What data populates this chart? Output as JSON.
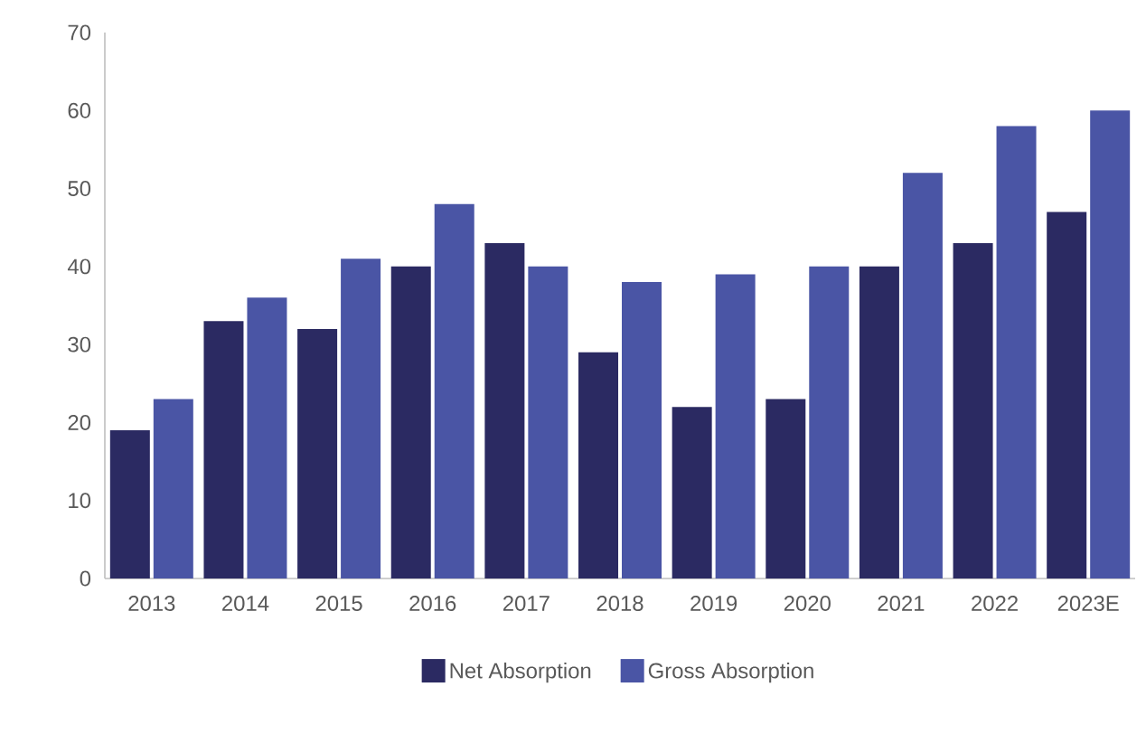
{
  "chart_data": {
    "type": "bar",
    "categories": [
      "2013",
      "2014",
      "2015",
      "2016",
      "2017",
      "2018",
      "2019",
      "2020",
      "2021",
      "2022",
      "2023E"
    ],
    "series": [
      {
        "name": "Net Absorption",
        "color": "#2b2a62",
        "values": [
          19,
          33,
          32,
          40,
          43,
          29,
          22,
          23,
          40,
          43,
          47
        ]
      },
      {
        "name": "Gross Absorption",
        "color": "#4a55a5",
        "values": [
          23,
          36,
          41,
          48,
          40,
          38,
          39,
          40,
          52,
          58,
          60
        ]
      }
    ],
    "ylim": [
      0,
      70
    ],
    "yticks": [
      0,
      10,
      20,
      30,
      40,
      50,
      60,
      70
    ],
    "grid": false,
    "legend": "bottom"
  }
}
